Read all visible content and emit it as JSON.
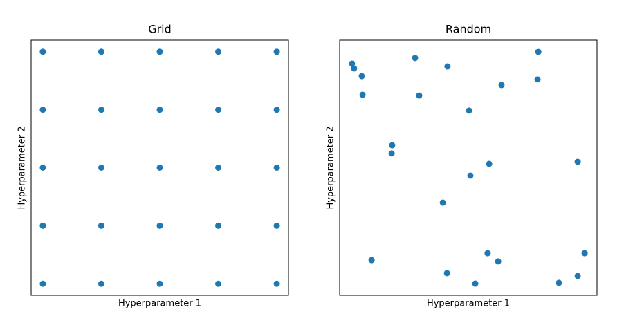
{
  "chart_data": [
    {
      "type": "scatter",
      "title": "Grid",
      "xlabel": "Hyperparameter 1",
      "ylabel": "Hyperparameter 2",
      "color": "#1f77b4",
      "xlim": [
        -0.05,
        1.05
      ],
      "ylim": [
        -0.05,
        1.05
      ],
      "x": [
        0,
        0.25,
        0.5,
        0.75,
        1,
        0,
        0.25,
        0.5,
        0.75,
        1,
        0,
        0.25,
        0.5,
        0.75,
        1,
        0,
        0.25,
        0.5,
        0.75,
        1,
        0,
        0.25,
        0.5,
        0.75,
        1
      ],
      "values": [
        1,
        1,
        1,
        1,
        1,
        0.75,
        0.75,
        0.75,
        0.75,
        0.75,
        0.5,
        0.5,
        0.5,
        0.5,
        0.5,
        0.25,
        0.25,
        0.25,
        0.25,
        0.25,
        0,
        0,
        0,
        0,
        0
      ]
    },
    {
      "type": "scatter",
      "title": "Random",
      "xlabel": "Hyperparameter 1",
      "ylabel": "Hyperparameter 2",
      "color": "#1f77b4",
      "xlim": [
        0,
        1
      ],
      "ylim": [
        0,
        1
      ],
      "x": [
        0.048,
        0.056,
        0.086,
        0.089,
        0.293,
        0.419,
        0.309,
        0.629,
        0.772,
        0.769,
        0.503,
        0.204,
        0.202,
        0.581,
        0.925,
        0.508,
        0.401,
        0.575,
        0.952,
        0.124,
        0.616,
        0.417,
        0.527,
        0.852,
        0.925
      ],
      "values": [
        0.908,
        0.889,
        0.859,
        0.786,
        0.93,
        0.897,
        0.783,
        0.824,
        0.954,
        0.846,
        0.724,
        0.588,
        0.556,
        0.515,
        0.523,
        0.469,
        0.363,
        0.165,
        0.165,
        0.138,
        0.133,
        0.087,
        0.046,
        0.049,
        0.076
      ]
    }
  ]
}
